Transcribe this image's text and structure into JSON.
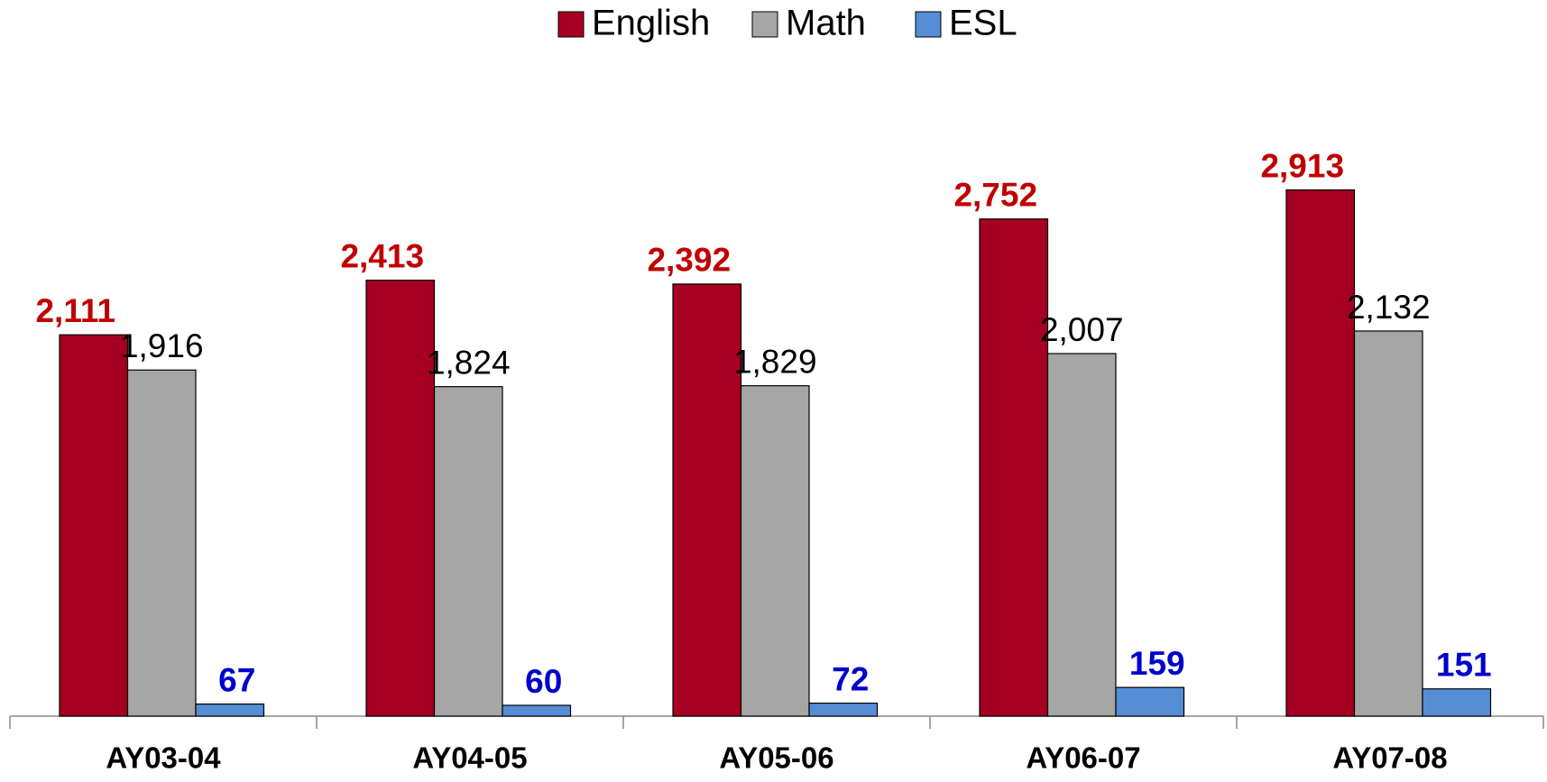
{
  "chart_data": {
    "type": "bar",
    "categories": [
      "AY03-04",
      "AY04-05",
      "AY05-06",
      "AY06-07",
      "AY07-08"
    ],
    "series": [
      {
        "name": "English",
        "color": "#a50021",
        "label_color": "#c00000",
        "label_bold": true,
        "values": [
          2111,
          2413,
          2392,
          2752,
          2913
        ],
        "value_labels": [
          "2,111",
          "2,413",
          "2,392",
          "2,752",
          "2,913"
        ]
      },
      {
        "name": "Math",
        "color": "#a6a6a6",
        "label_color": "#000000",
        "label_bold": false,
        "values": [
          1916,
          1824,
          1829,
          2007,
          2132
        ],
        "value_labels": [
          "1,916",
          "1,824",
          "1,829",
          "2,007",
          "2,132"
        ]
      },
      {
        "name": "ESL",
        "color": "#558ed5",
        "label_color": "#0000cc",
        "label_bold": true,
        "values": [
          67,
          60,
          72,
          159,
          151
        ],
        "value_labels": [
          "67",
          "60",
          "72",
          "159",
          "151"
        ]
      }
    ],
    "ylim": [
      0,
      3500
    ],
    "legend": "top"
  }
}
